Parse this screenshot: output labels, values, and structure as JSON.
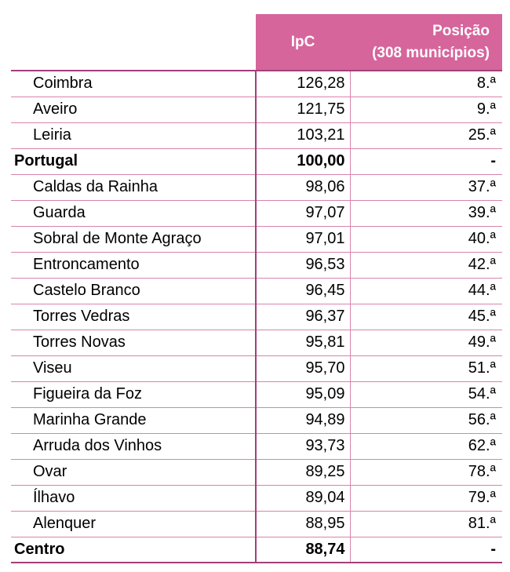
{
  "chart_data": {
    "type": "table",
    "columns": [
      "",
      "IpC",
      "Posição",
      "(308 municípios)"
    ],
    "rows": [
      {
        "name": "Coimbra",
        "ipc": "126,28",
        "pos": "8.ª",
        "bold": false
      },
      {
        "name": "Aveiro",
        "ipc": "121,75",
        "pos": "9.ª",
        "bold": false
      },
      {
        "name": "Leiria",
        "ipc": "103,21",
        "pos": "25.ª",
        "bold": false
      },
      {
        "name": "Portugal",
        "ipc": "100,00",
        "pos": "-",
        "bold": true
      },
      {
        "name": "Caldas da Rainha",
        "ipc": "98,06",
        "pos": "37.ª",
        "bold": false
      },
      {
        "name": "Guarda",
        "ipc": "97,07",
        "pos": "39.ª",
        "bold": false
      },
      {
        "name": "Sobral de Monte Agraço",
        "ipc": "97,01",
        "pos": "40.ª",
        "bold": false
      },
      {
        "name": "Entroncamento",
        "ipc": "96,53",
        "pos": "42.ª",
        "bold": false
      },
      {
        "name": "Castelo Branco",
        "ipc": "96,45",
        "pos": "44.ª",
        "bold": false
      },
      {
        "name": "Torres Vedras",
        "ipc": "96,37",
        "pos": "45.ª",
        "bold": false
      },
      {
        "name": "Torres Novas",
        "ipc": "95,81",
        "pos": "49.ª",
        "bold": false
      },
      {
        "name": "Viseu",
        "ipc": "95,70",
        "pos": "51.ª",
        "bold": false
      },
      {
        "name": "Figueira da Foz",
        "ipc": "95,09",
        "pos": "54.ª",
        "bold": false
      },
      {
        "name": "Marinha Grande",
        "ipc": "94,89",
        "pos": "56.ª",
        "bold": false
      },
      {
        "name": "Arruda dos Vinhos",
        "ipc": "93,73",
        "pos": "62.ª",
        "bold": false
      },
      {
        "name": "Ovar",
        "ipc": "89,25",
        "pos": "78.ª",
        "bold": false
      },
      {
        "name": "Ílhavo",
        "ipc": "89,04",
        "pos": "79.ª",
        "bold": false
      },
      {
        "name": "Alenquer",
        "ipc": "88,95",
        "pos": "81.ª",
        "bold": false
      },
      {
        "name": "Centro",
        "ipc": "88,74",
        "pos": "-",
        "bold": true
      }
    ]
  },
  "colors": {
    "header_bg": "#d6659c",
    "header_text": "#ffffff",
    "rule_dark": "#a0407a",
    "rule_light": "#d983ad"
  }
}
